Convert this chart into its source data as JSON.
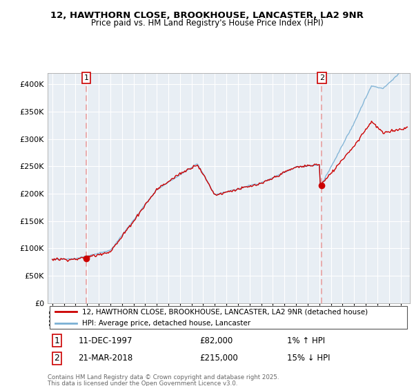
{
  "title_line1": "12, HAWTHORN CLOSE, BROOKHOUSE, LANCASTER, LA2 9NR",
  "title_line2": "Price paid vs. HM Land Registry's House Price Index (HPI)",
  "ylim": [
    0,
    420000
  ],
  "yticks": [
    0,
    50000,
    100000,
    150000,
    200000,
    250000,
    300000,
    350000,
    400000
  ],
  "ytick_labels": [
    "£0",
    "£50K",
    "£100K",
    "£150K",
    "£200K",
    "£250K",
    "£300K",
    "£350K",
    "£400K"
  ],
  "sale1_date_num": 1997.94,
  "sale1_price": 82000,
  "sale1_label": "11-DEC-1997",
  "sale1_price_str": "£82,000",
  "sale1_hpi_str": "1% ↑ HPI",
  "sale2_date_num": 2018.22,
  "sale2_price": 215000,
  "sale2_label": "21-MAR-2018",
  "sale2_price_str": "£215,000",
  "sale2_hpi_str": "15% ↓ HPI",
  "line1_color": "#cc0000",
  "line2_color": "#7ab0d4",
  "vline_color": "#e8a0a0",
  "legend_label1": "12, HAWTHORN CLOSE, BROOKHOUSE, LANCASTER, LA2 9NR (detached house)",
  "legend_label2": "HPI: Average price, detached house, Lancaster",
  "footer_line1": "Contains HM Land Registry data © Crown copyright and database right 2025.",
  "footer_line2": "This data is licensed under the Open Government Licence v3.0.",
  "xlim_start": 1994.6,
  "xlim_end": 2025.8,
  "chart_bg": "#e8eef4",
  "grid_color": "#ffffff"
}
